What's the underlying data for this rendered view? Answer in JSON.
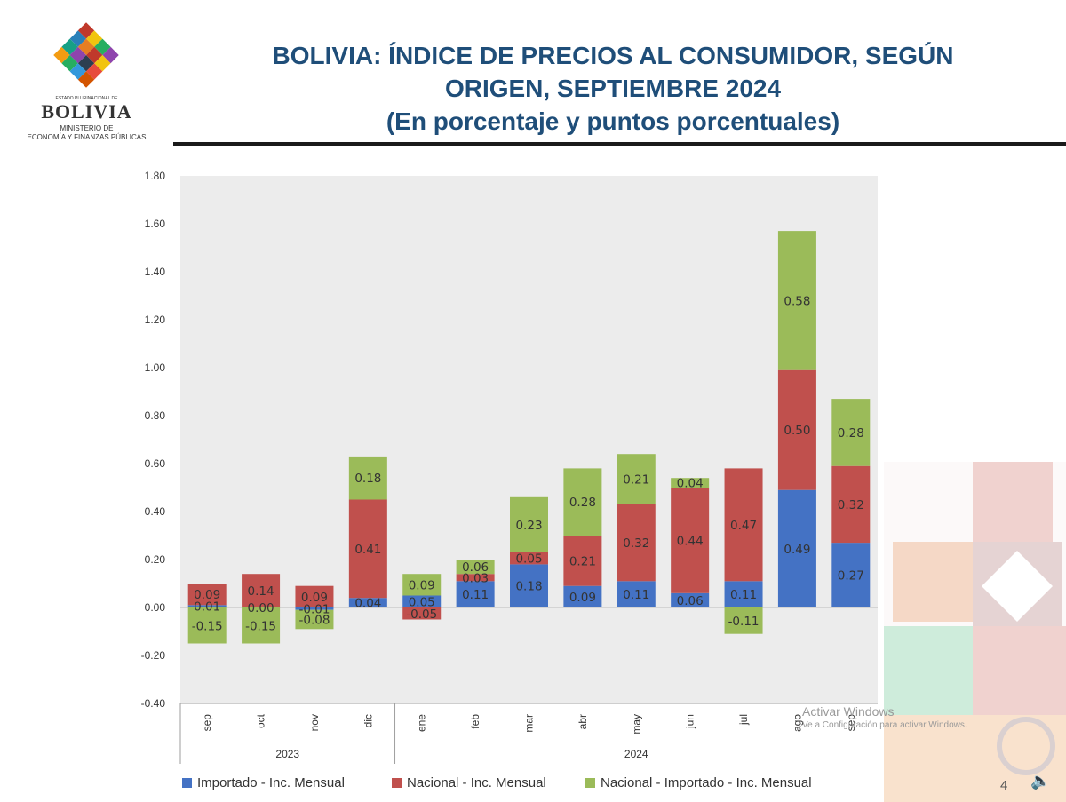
{
  "header": {
    "logo_line1": "ESTADO PLURINACIONAL DE",
    "logo_line2": "BOLIVIA",
    "logo_line3": "MINISTERIO DE",
    "logo_line4": "ECONOMÍA Y FINANZAS PÚBLICAS",
    "title_line1": "BOLIVIA: ÍNDICE DE PRECIOS AL CONSUMIDOR, SEGÚN",
    "title_line2": "ORIGEN, SEPTIEMBRE 2024",
    "title_line3": "(En porcentaje y puntos porcentuales)"
  },
  "chart_data": {
    "type": "bar",
    "stacked": true,
    "title": "",
    "xlabel": "",
    "ylabel": "",
    "ylim": [
      -0.4,
      1.8
    ],
    "yticks": [
      "1.80",
      "1.60",
      "1.40",
      "1.20",
      "1.00",
      "0.80",
      "0.60",
      "0.40",
      "0.20",
      "0.00",
      "-0.20",
      "-0.40"
    ],
    "categories": [
      "sep",
      "oct",
      "nov",
      "dic",
      "ene",
      "feb",
      "mar",
      "abr",
      "may",
      "jun",
      "jul",
      "ago",
      "sep"
    ],
    "year_groups": [
      {
        "label": "2023",
        "count": 4
      },
      {
        "label": "2024",
        "count": 9
      }
    ],
    "series": [
      {
        "name": "Importado - Inc. Mensual",
        "color": "#4472c4",
        "values": [
          0.01,
          0.0,
          -0.01,
          0.04,
          0.05,
          0.11,
          0.18,
          0.09,
          0.11,
          0.06,
          0.11,
          0.49,
          0.27
        ],
        "labels": [
          "0.01",
          "0.00",
          "-0.01",
          "0.04",
          "0.05",
          "0.11",
          "0.18",
          "0.09",
          "0.11",
          "0.06",
          "0.11",
          "0.49",
          "0.27"
        ]
      },
      {
        "name": "Nacional - Inc. Mensual",
        "color": "#c0504d",
        "values": [
          0.09,
          0.14,
          0.09,
          0.41,
          -0.05,
          0.03,
          0.05,
          0.21,
          0.32,
          0.44,
          0.47,
          0.5,
          0.32
        ],
        "labels": [
          "0.09",
          "0.14",
          "0.09",
          "0.41",
          "-0.05",
          "0.03",
          "0.05",
          "0.21",
          "0.32",
          "0.44",
          "0.47",
          "0.50",
          "0.32"
        ]
      },
      {
        "name": "Nacional - Importado - Inc. Mensual",
        "color": "#9bbb59",
        "values": [
          -0.15,
          -0.15,
          -0.08,
          0.18,
          0.09,
          0.06,
          0.23,
          0.28,
          0.21,
          0.04,
          -0.11,
          0.58,
          0.28
        ],
        "labels": [
          "-0.15",
          "-0.15",
          "-0.08",
          "0.18",
          "0.09",
          "0.06",
          "0.23",
          "0.28",
          "0.21",
          "0.04",
          "-0.11",
          "0.58",
          "0.28"
        ]
      }
    ],
    "legend_position": "bottom",
    "grid": false
  },
  "footer": {
    "watermark_line1": "Activar Windows",
    "watermark_line2": "Ve a Configuración para activar Windows.",
    "page_number": "4",
    "speaker_icon": "speaker-icon"
  }
}
